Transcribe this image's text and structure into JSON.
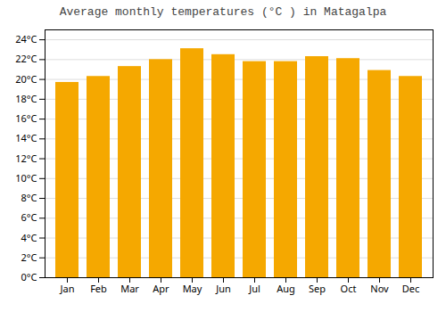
{
  "chart_data": {
    "type": "bar",
    "title": "Average monthly temperatures (°C ) in Matagalpa",
    "categories": [
      "Jan",
      "Feb",
      "Mar",
      "Apr",
      "May",
      "Jun",
      "Jul",
      "Aug",
      "Sep",
      "Oct",
      "Nov",
      "Dec"
    ],
    "values": [
      19.7,
      20.3,
      21.3,
      22.0,
      23.1,
      22.5,
      21.8,
      21.8,
      22.3,
      22.1,
      20.9,
      20.3
    ],
    "color": "#F5A800",
    "ylim": [
      0,
      25
    ],
    "yticks": [
      {
        "value": 0,
        "label": "0°C"
      },
      {
        "value": 2,
        "label": "2°C"
      },
      {
        "value": 4,
        "label": "4°C"
      },
      {
        "value": 6,
        "label": "6°C"
      },
      {
        "value": 8,
        "label": "8°C"
      },
      {
        "value": 10,
        "label": "10°C"
      },
      {
        "value": 12,
        "label": "12°C"
      },
      {
        "value": 14,
        "label": "14°C"
      },
      {
        "value": 16,
        "label": "16°C"
      },
      {
        "value": 18,
        "label": "18°C"
      },
      {
        "value": 20,
        "label": "20°C"
      },
      {
        "value": 22,
        "label": "22°C"
      },
      {
        "value": 24,
        "label": "24°C"
      }
    ],
    "grid": true
  }
}
